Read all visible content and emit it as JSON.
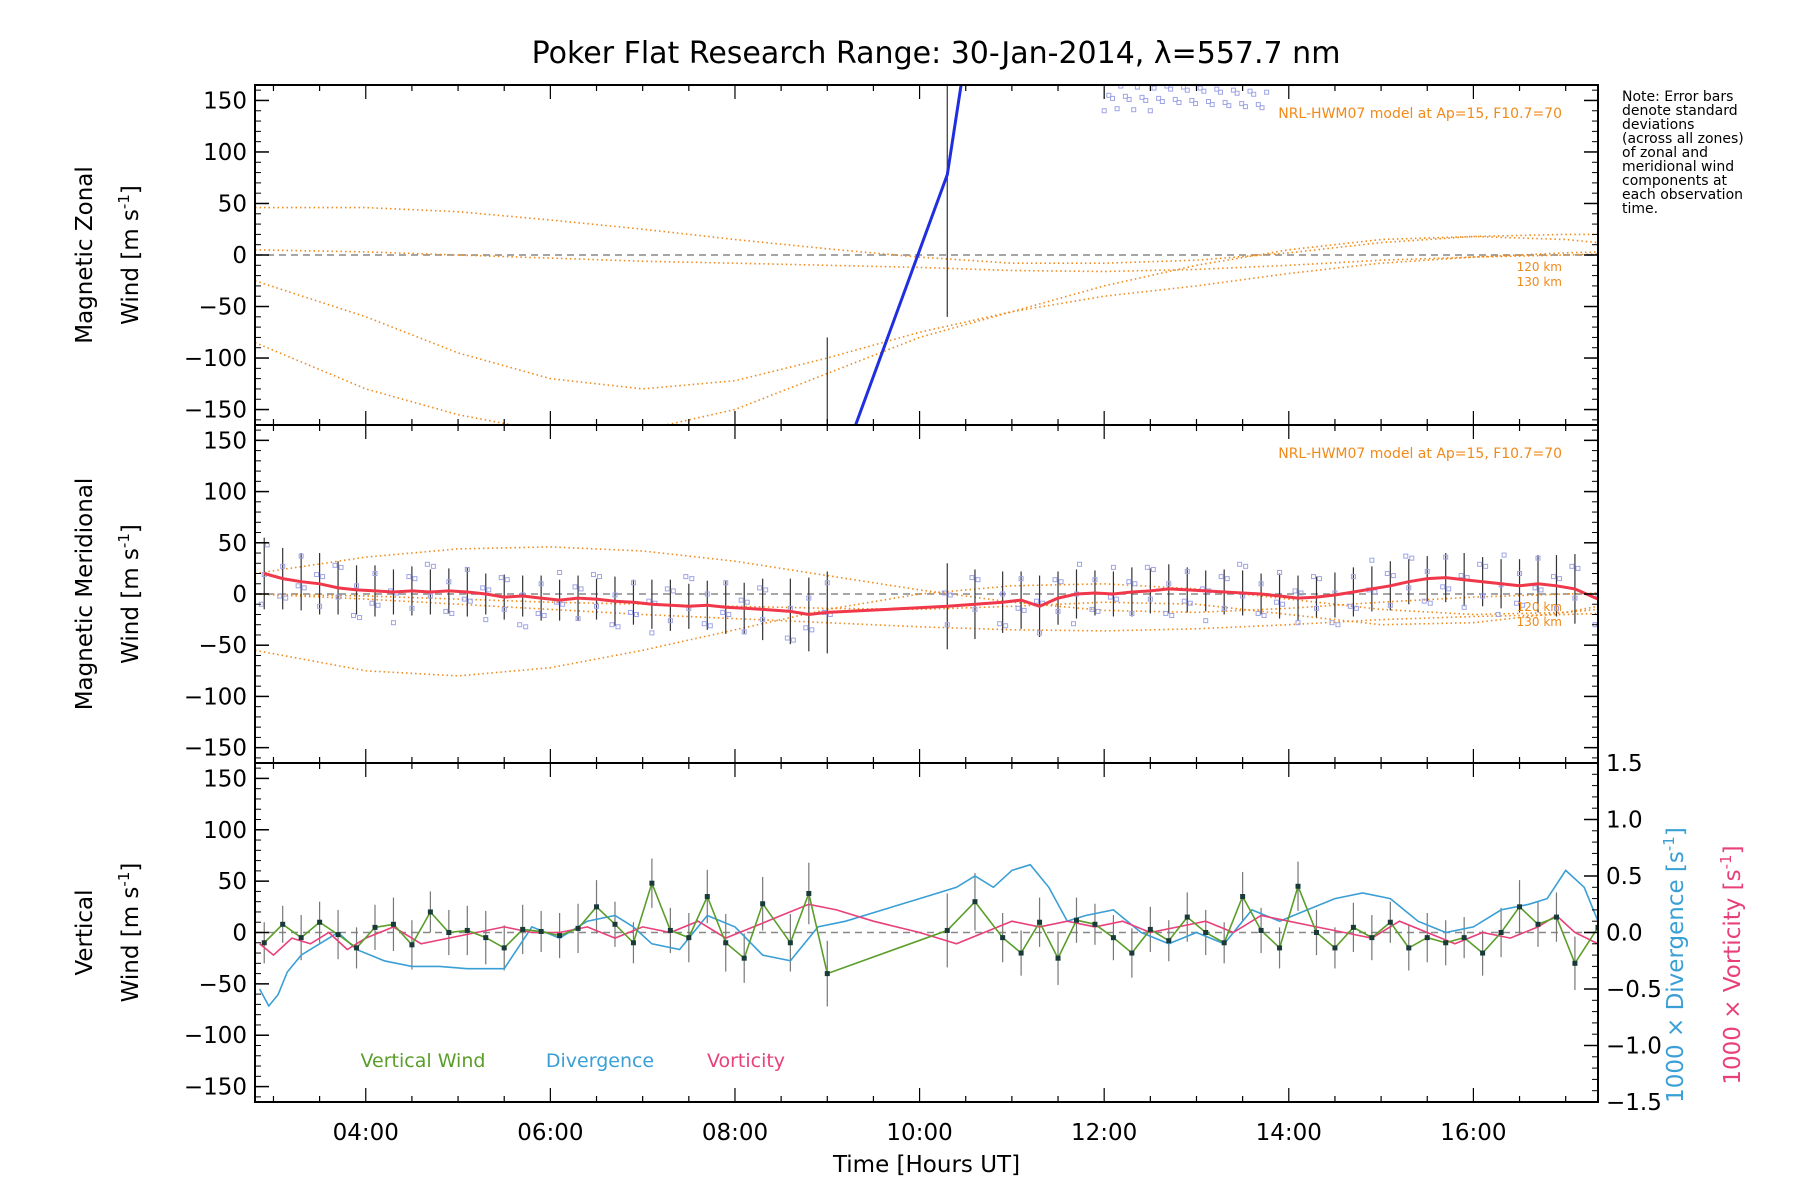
{
  "title": "Poker Flat Research Range: 30-Jan-2014, λ=557.7 nm",
  "note": [
    "Note: Error bars",
    "denote standard",
    "deviations",
    "(across all zones)",
    "of zonal and",
    "meridional wind",
    "components at",
    "each observation",
    "time."
  ],
  "colors": {
    "model": "#f08a1a",
    "zonal_line": "#1f2fe0",
    "meridional_line": "#f0384a",
    "vertical": "#5a9e2a",
    "divergence": "#3a9fd6",
    "vorticity": "#e8407a",
    "zone_points": "#9ea4e6",
    "error_bar": "#333333",
    "zero_line": "#888888"
  },
  "panels": {
    "zonal": {
      "ylabel_1": "Magnetic Zonal",
      "ylabel_2": "Wind [m s",
      "ylabel_sup": "-1",
      "ylabel_end": "]",
      "model_label": "NRL-HWM07 model at Ap=15, F10.7=70",
      "alt_labels": [
        "120 km",
        "130 km"
      ]
    },
    "meridional": {
      "ylabel_1": "Magnetic Meridional",
      "ylabel_2": "Wind [m s",
      "ylabel_sup": "-1",
      "ylabel_end": "]",
      "model_label": "NRL-HWM07 model at Ap=15, F10.7=70",
      "alt_labels": [
        "120 km",
        "130 km"
      ]
    },
    "vertical": {
      "ylabel_1": "Vertical",
      "ylabel_2": "Wind [m s",
      "ylabel_sup": "-1",
      "ylabel_end": "]",
      "right_label_div": "1000 × Divergence [s",
      "right_label_vort": "1000 × Vorticity [s",
      "right_sup": "-1",
      "right_end": "]",
      "legend": [
        "Vertical Wind",
        "Divergence",
        "Vorticity"
      ]
    }
  },
  "xaxis": {
    "label": "Time [Hours UT]",
    "ticks": [
      "04:00",
      "06:00",
      "08:00",
      "10:00",
      "12:00",
      "14:00",
      "16:00"
    ]
  },
  "chart_data": [
    {
      "type": "line",
      "panel": "zonal",
      "xlim": [
        2.8,
        17.35
      ],
      "ylim": [
        -165,
        165
      ],
      "yticks": [
        -150,
        -100,
        -50,
        0,
        50,
        100,
        150
      ],
      "ytick_labels": [
        "−150",
        "−100",
        "−50",
        "0",
        "50",
        "100",
        "150"
      ],
      "series": [
        {
          "kind": "observed",
          "x": [
            9.0,
            10.3,
            10.45
          ],
          "y": [
            -240,
            78,
            165
          ]
        }
      ],
      "model_curves": [
        {
          "x": [
            2.8,
            4,
            5,
            6,
            7,
            8,
            9,
            10,
            11,
            12,
            13,
            14,
            15,
            16,
            17,
            17.35
          ],
          "y": [
            46,
            46,
            42,
            34,
            25,
            15,
            6,
            -2,
            -8,
            -8,
            -5,
            2,
            12,
            18,
            20,
            20
          ]
        },
        {
          "x": [
            2.8,
            4,
            5,
            6,
            7,
            8,
            9,
            10,
            11,
            12,
            13,
            14,
            15,
            16,
            17,
            17.35
          ],
          "y": [
            -25,
            -60,
            -95,
            -120,
            -130,
            -122,
            -100,
            -75,
            -55,
            -40,
            -30,
            -18,
            -8,
            -2,
            2,
            3
          ]
        },
        {
          "x": [
            2.8,
            4,
            5,
            6,
            7,
            8,
            9,
            10,
            11,
            12,
            13,
            14,
            15,
            16,
            17,
            17.35
          ],
          "y": [
            -85,
            -130,
            -155,
            -172,
            -170,
            -150,
            -115,
            -80,
            -55,
            -30,
            -10,
            5,
            15,
            18,
            15,
            12
          ]
        },
        {
          "x": [
            2.8,
            4,
            5,
            6,
            7,
            8,
            9,
            10,
            11,
            12,
            13,
            14,
            15,
            16,
            17,
            17.35
          ],
          "y": [
            5,
            3,
            0,
            -3,
            -6,
            -8,
            -10,
            -12,
            -15,
            -16,
            -14,
            -10,
            -5,
            -2,
            0,
            1
          ]
        }
      ]
    },
    {
      "type": "line",
      "panel": "meridional",
      "xlim": [
        2.8,
        17.35
      ],
      "ylim": [
        -165,
        165
      ],
      "yticks": [
        -150,
        -100,
        -50,
        0,
        50,
        100,
        150
      ],
      "ytick_labels": [
        "−150",
        "−100",
        "−50",
        "0",
        "50",
        "100",
        "150"
      ],
      "series": [
        {
          "kind": "observed",
          "x": [
            2.9,
            3.1,
            3.3,
            3.5,
            3.7,
            3.9,
            4.1,
            4.3,
            4.5,
            4.7,
            4.9,
            5.1,
            5.3,
            5.5,
            5.7,
            5.9,
            6.1,
            6.3,
            6.5,
            6.7,
            6.9,
            7.1,
            7.3,
            7.5,
            7.7,
            7.9,
            8.1,
            8.3,
            8.6,
            8.8,
            9.0,
            10.3,
            10.6,
            10.9,
            11.1,
            11.3,
            11.5,
            11.7,
            11.9,
            12.1,
            12.3,
            12.5,
            12.7,
            12.9,
            13.1,
            13.3,
            13.5,
            13.7,
            13.9,
            14.1,
            14.3,
            14.5,
            14.7,
            14.9,
            15.1,
            15.3,
            15.5,
            15.7,
            15.9,
            16.1,
            16.3,
            16.5,
            16.7,
            16.9,
            17.1,
            17.35
          ],
          "y": [
            20,
            15,
            12,
            10,
            6,
            4,
            3,
            2,
            3,
            2,
            3,
            2,
            0,
            -3,
            -2,
            -4,
            -6,
            -4,
            -5,
            -7,
            -8,
            -10,
            -11,
            -12,
            -11,
            -13,
            -14,
            -15,
            -17,
            -20,
            -18,
            -12,
            -10,
            -8,
            -6,
            -12,
            -4,
            0,
            1,
            0,
            2,
            3,
            5,
            4,
            3,
            2,
            1,
            0,
            -2,
            -4,
            -3,
            -1,
            2,
            5,
            8,
            12,
            15,
            16,
            14,
            12,
            10,
            8,
            10,
            8,
            5,
            -5
          ],
          "err": [
            35,
            30,
            28,
            30,
            26,
            24,
            25,
            22,
            24,
            22,
            22,
            24,
            20,
            22,
            20,
            22,
            20,
            22,
            20,
            24,
            22,
            24,
            25,
            22,
            24,
            26,
            25,
            30,
            32,
            36,
            40,
            42,
            34,
            30,
            28,
            30,
            26,
            24,
            22,
            22,
            24,
            22,
            24,
            22,
            20,
            22,
            22,
            20,
            22,
            22,
            20,
            22,
            24,
            22,
            24,
            22,
            22,
            24,
            26,
            24,
            24,
            26,
            28,
            30,
            34,
            40
          ]
        }
      ],
      "model_curves": [
        {
          "x": [
            2.8,
            4,
            5,
            6,
            7,
            8,
            9,
            10,
            11,
            12,
            13,
            14,
            15,
            16,
            17,
            17.35
          ],
          "y": [
            20,
            36,
            44,
            46,
            42,
            32,
            18,
            4,
            -8,
            -16,
            -18,
            -14,
            -8,
            -3,
            0,
            1
          ]
        },
        {
          "x": [
            2.8,
            4,
            5,
            6,
            7,
            8,
            9,
            10,
            11,
            12,
            13,
            14,
            15,
            16,
            17,
            17.35
          ],
          "y": [
            -55,
            -75,
            -80,
            -72,
            -55,
            -35,
            -15,
            0,
            8,
            10,
            5,
            -5,
            -15,
            -20,
            -18,
            -15
          ]
        },
        {
          "x": [
            2.8,
            4,
            5,
            6,
            7,
            8,
            9,
            10,
            11,
            12,
            13,
            14,
            15,
            16,
            17,
            17.35
          ],
          "y": [
            0,
            -2,
            -5,
            -8,
            -10,
            -12,
            -14,
            -15,
            -12,
            -8,
            -10,
            -20,
            -30,
            -28,
            -18,
            -12
          ]
        },
        {
          "x": [
            2.8,
            4,
            5,
            6,
            7,
            8,
            9,
            10,
            11,
            12,
            13,
            14,
            15,
            16,
            17,
            17.35
          ],
          "y": [
            0,
            -5,
            -10,
            -15,
            -20,
            -24,
            -28,
            -32,
            -35,
            -36,
            -34,
            -30,
            -25,
            -22,
            -20,
            -19
          ]
        }
      ]
    },
    {
      "type": "line",
      "panel": "vertical",
      "xlim": [
        2.8,
        17.35
      ],
      "ylim": [
        -165,
        165
      ],
      "yticks": [
        -150,
        -100,
        -50,
        0,
        50,
        100,
        150
      ],
      "ytick_labels": [
        "−150",
        "−100",
        "−50",
        "0",
        "50",
        "100",
        "150"
      ],
      "y2lim": [
        -1.5,
        1.5
      ],
      "y2ticks": [
        -1.5,
        -1.0,
        -0.5,
        0.0,
        0.5,
        1.0,
        1.5
      ],
      "y2tick_labels": [
        "−1.5",
        "−1.0",
        "−0.5",
        "0.0",
        "0.5",
        "1.0",
        "1.5"
      ],
      "series": [
        {
          "name": "Vertical Wind",
          "axis": "left",
          "x": [
            2.9,
            3.1,
            3.3,
            3.5,
            3.7,
            3.9,
            4.1,
            4.3,
            4.5,
            4.7,
            4.9,
            5.1,
            5.3,
            5.5,
            5.7,
            5.9,
            6.1,
            6.3,
            6.5,
            6.7,
            6.9,
            7.1,
            7.3,
            7.5,
            7.7,
            7.9,
            8.1,
            8.3,
            8.6,
            8.8,
            9.0,
            10.3,
            10.6,
            10.9,
            11.1,
            11.3,
            11.5,
            11.7,
            11.9,
            12.1,
            12.3,
            12.5,
            12.7,
            12.9,
            13.1,
            13.3,
            13.5,
            13.7,
            13.9,
            14.1,
            14.3,
            14.5,
            14.7,
            14.9,
            15.1,
            15.3,
            15.5,
            15.7,
            15.9,
            16.1,
            16.3,
            16.5,
            16.7,
            16.9,
            17.1,
            17.35
          ],
          "y": [
            -10,
            8,
            -5,
            10,
            -2,
            -15,
            5,
            8,
            -12,
            20,
            0,
            2,
            -5,
            -15,
            3,
            1,
            -3,
            4,
            25,
            8,
            -10,
            48,
            2,
            -5,
            35,
            -10,
            -25,
            28,
            -10,
            38,
            -40,
            2,
            30,
            -5,
            -20,
            10,
            -25,
            12,
            8,
            -5,
            -20,
            3,
            -8,
            15,
            0,
            -10,
            35,
            2,
            -15,
            45,
            0,
            -15,
            5,
            -5,
            10,
            -15,
            -5,
            -10,
            -5,
            -20,
            0,
            25,
            8,
            15,
            -30,
            5
          ],
          "err": [
            20,
            18,
            22,
            20,
            24,
            20,
            22,
            26,
            24,
            20,
            22,
            24,
            26,
            22,
            24,
            20,
            22,
            24,
            26,
            22,
            20,
            24,
            22,
            24,
            26,
            28,
            24,
            26,
            28,
            30,
            32,
            36,
            28,
            24,
            22,
            24,
            26,
            22,
            20,
            22,
            24,
            22,
            20,
            24,
            22,
            20,
            24,
            22,
            20,
            24,
            22,
            20,
            24,
            22,
            20,
            22,
            24,
            22,
            20,
            22,
            24,
            26,
            22,
            24,
            26,
            28
          ]
        },
        {
          "name": "Divergence",
          "axis": "right",
          "x": [
            2.85,
            2.95,
            3.05,
            3.15,
            3.3,
            3.5,
            3.7,
            3.9,
            4.2,
            4.5,
            4.8,
            5.1,
            5.5,
            5.8,
            6.1,
            6.4,
            6.7,
            6.9,
            7.1,
            7.4,
            7.7,
            8.0,
            8.3,
            8.6,
            8.9,
            9.2,
            9.6,
            10.0,
            10.4,
            10.6,
            10.8,
            11.0,
            11.2,
            11.4,
            11.6,
            11.8,
            12.1,
            12.4,
            12.7,
            13.0,
            13.3,
            13.6,
            13.9,
            14.2,
            14.5,
            14.8,
            15.1,
            15.4,
            15.7,
            16.0,
            16.3,
            16.6,
            16.8,
            17.0,
            17.2,
            17.35
          ],
          "y": [
            -0.5,
            -0.65,
            -0.55,
            -0.35,
            -0.2,
            -0.1,
            0.0,
            -0.15,
            -0.25,
            -0.3,
            -0.3,
            -0.32,
            -0.32,
            0.05,
            -0.05,
            0.1,
            0.15,
            0.05,
            -0.1,
            -0.15,
            0.15,
            0.05,
            -0.2,
            -0.25,
            0.05,
            0.1,
            0.2,
            0.3,
            0.4,
            0.5,
            0.4,
            0.55,
            0.6,
            0.4,
            0.1,
            0.15,
            0.2,
            0.0,
            -0.1,
            0.0,
            -0.1,
            0.2,
            0.1,
            0.2,
            0.3,
            0.35,
            0.3,
            0.1,
            0.0,
            0.05,
            0.2,
            0.25,
            0.3,
            0.55,
            0.4,
            0.1
          ]
        },
        {
          "name": "Vorticity",
          "axis": "right",
          "x": [
            2.85,
            3.0,
            3.2,
            3.4,
            3.6,
            3.8,
            4.0,
            4.3,
            4.6,
            4.9,
            5.2,
            5.5,
            5.8,
            6.1,
            6.4,
            6.7,
            7.0,
            7.3,
            7.6,
            7.9,
            8.2,
            8.5,
            8.8,
            9.1,
            9.5,
            10.0,
            10.4,
            10.7,
            11.0,
            11.3,
            11.6,
            11.9,
            12.2,
            12.5,
            12.8,
            13.1,
            13.4,
            13.7,
            14.0,
            14.3,
            14.6,
            14.9,
            15.2,
            15.5,
            15.8,
            16.1,
            16.4,
            16.7,
            16.9,
            17.1,
            17.35
          ],
          "y": [
            -0.1,
            -0.2,
            -0.05,
            -0.1,
            0.0,
            -0.15,
            -0.05,
            0.05,
            -0.1,
            -0.05,
            0.0,
            0.05,
            0.0,
            0.0,
            0.05,
            -0.05,
            0.05,
            0.0,
            0.1,
            -0.05,
            0.05,
            0.15,
            0.25,
            0.2,
            0.1,
            0.0,
            -0.1,
            0.0,
            0.1,
            0.05,
            0.1,
            0.05,
            0.1,
            0.0,
            0.05,
            0.1,
            0.0,
            0.15,
            0.1,
            0.05,
            0.0,
            -0.05,
            0.1,
            0.0,
            -0.1,
            0.0,
            -0.05,
            0.05,
            0.15,
            0.0,
            -0.1
          ]
        }
      ]
    }
  ]
}
